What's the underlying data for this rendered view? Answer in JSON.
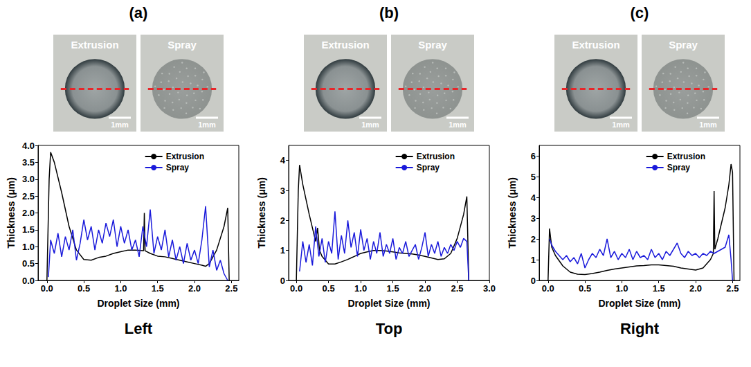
{
  "chart_data": [
    {
      "type": "line",
      "title": "(a)",
      "caption": "Left",
      "annotations": [
        {
          "text": "Extrusion",
          "scale_bar": "1mm"
        },
        {
          "text": "Spray",
          "scale_bar": "1mm"
        }
      ],
      "x_label": "Droplet Size (mm)",
      "y_label": "Thickness (μm)",
      "xlim": [
        -0.12,
        2.6
      ],
      "xticks": [
        {
          "value": 0,
          "label": "0.0"
        },
        0.5,
        {
          "value": 1,
          "label": "1.0"
        },
        1.5,
        {
          "value": 2,
          "label": "2.0"
        },
        2.5
      ],
      "ylim": [
        0,
        4
      ],
      "yticks": [
        {
          "value": 0,
          "label": "0.0"
        },
        0.5,
        {
          "value": 1,
          "label": "1.0"
        },
        1.5,
        {
          "value": 2,
          "label": "2.0"
        },
        2.5,
        {
          "value": 3,
          "label": "3.0"
        },
        3.5,
        {
          "value": 4,
          "label": "4.0"
        }
      ],
      "grid": false,
      "legend": "upper right",
      "series": [
        {
          "name": "Extrusion",
          "color": "#000000",
          "x": [
            0.0,
            0.03,
            0.05,
            0.1,
            0.2,
            0.3,
            0.4,
            0.5,
            0.6,
            0.7,
            0.8,
            0.9,
            1.0,
            1.1,
            1.2,
            1.3,
            1.31,
            1.32,
            1.33,
            1.4,
            1.5,
            1.6,
            1.7,
            1.8,
            1.9,
            2.0,
            2.1,
            2.15,
            2.2,
            2.3,
            2.4,
            2.45,
            2.47
          ],
          "values": [
            0,
            3.0,
            3.8,
            3.5,
            2.6,
            1.6,
            0.9,
            0.62,
            0.6,
            0.68,
            0.72,
            0.8,
            0.85,
            0.9,
            0.9,
            0.88,
            0.88,
            2.0,
            0.88,
            0.8,
            0.72,
            0.7,
            0.65,
            0.6,
            0.55,
            0.5,
            0.45,
            0.42,
            0.5,
            0.9,
            1.6,
            2.15,
            0
          ]
        },
        {
          "name": "Spray",
          "color": "#1a1adb",
          "x": [
            0.02,
            0.05,
            0.1,
            0.15,
            0.2,
            0.25,
            0.3,
            0.35,
            0.4,
            0.45,
            0.5,
            0.55,
            0.6,
            0.65,
            0.7,
            0.75,
            0.8,
            0.85,
            0.9,
            0.95,
            1.0,
            1.05,
            1.1,
            1.15,
            1.2,
            1.25,
            1.3,
            1.35,
            1.4,
            1.45,
            1.5,
            1.55,
            1.6,
            1.65,
            1.7,
            1.75,
            1.8,
            1.85,
            1.9,
            1.95,
            2.0,
            2.05,
            2.1,
            2.15,
            2.2,
            2.25,
            2.3,
            2.35,
            2.4,
            2.45
          ],
          "values": [
            0.1,
            1.2,
            0.8,
            1.4,
            0.7,
            1.3,
            0.9,
            1.5,
            0.6,
            1.1,
            1.8,
            1.2,
            1.6,
            0.9,
            1.5,
            1.1,
            1.7,
            1.3,
            1.8,
            1.0,
            1.6,
            1.1,
            1.5,
            0.9,
            1.2,
            0.7,
            1.6,
            1.0,
            2.1,
            0.8,
            1.3,
            0.9,
            1.5,
            0.7,
            1.2,
            0.6,
            1.0,
            0.5,
            1.1,
            0.6,
            0.9,
            0.5,
            1.2,
            2.2,
            0.4,
            0.9,
            0.3,
            0.6,
            0.2,
            0.0
          ]
        }
      ]
    },
    {
      "type": "line",
      "title": "(b)",
      "caption": "Top",
      "annotations": [
        {
          "text": "Extrusion",
          "scale_bar": "1mm"
        },
        {
          "text": "Spray",
          "scale_bar": "1mm"
        }
      ],
      "x_label": "Droplet Size (mm)",
      "y_label": "Thickness (μm)",
      "xlim": [
        -0.12,
        3.0
      ],
      "xticks": [
        {
          "value": 0,
          "label": "0.0"
        },
        0.5,
        {
          "value": 1,
          "label": "1.0"
        },
        1.5,
        {
          "value": 2,
          "label": "2.0"
        },
        2.5,
        {
          "value": 3,
          "label": "3.0"
        }
      ],
      "ylim": [
        0,
        4.5
      ],
      "yticks": [
        0,
        1,
        2,
        3,
        4
      ],
      "grid": false,
      "legend": "upper right",
      "series": [
        {
          "name": "Extrusion",
          "color": "#000000",
          "x": [
            0.0,
            0.03,
            0.05,
            0.1,
            0.2,
            0.3,
            0.33,
            0.36,
            0.4,
            0.5,
            0.6,
            0.7,
            0.8,
            0.9,
            1.0,
            1.1,
            1.2,
            1.3,
            1.4,
            1.5,
            1.6,
            1.7,
            1.8,
            1.9,
            2.0,
            2.1,
            2.2,
            2.3,
            2.4,
            2.5,
            2.6,
            2.65,
            2.68
          ],
          "values": [
            0,
            3.0,
            3.85,
            3.2,
            2.2,
            1.3,
            1.75,
            1.0,
            0.8,
            0.55,
            0.55,
            0.62,
            0.7,
            0.8,
            0.9,
            0.95,
            1.0,
            1.0,
            0.98,
            0.95,
            0.92,
            0.9,
            0.88,
            0.85,
            0.8,
            0.75,
            0.7,
            0.72,
            0.9,
            1.4,
            2.2,
            2.8,
            0
          ]
        },
        {
          "name": "Spray",
          "color": "#1a1adb",
          "x": [
            0.05,
            0.1,
            0.15,
            0.2,
            0.25,
            0.3,
            0.35,
            0.4,
            0.45,
            0.5,
            0.55,
            0.6,
            0.65,
            0.7,
            0.75,
            0.8,
            0.85,
            0.9,
            0.95,
            1.0,
            1.05,
            1.1,
            1.15,
            1.2,
            1.25,
            1.3,
            1.35,
            1.4,
            1.45,
            1.5,
            1.55,
            1.6,
            1.65,
            1.7,
            1.75,
            1.8,
            1.85,
            1.9,
            1.95,
            2.0,
            2.05,
            2.1,
            2.15,
            2.2,
            2.25,
            2.3,
            2.35,
            2.4,
            2.45,
            2.5,
            2.55,
            2.6,
            2.65,
            2.68
          ],
          "values": [
            0.3,
            1.3,
            0.6,
            1.2,
            0.5,
            1.8,
            0.8,
            1.4,
            0.6,
            1.3,
            0.9,
            2.3,
            0.7,
            1.5,
            0.9,
            2.0,
            1.1,
            1.6,
            0.8,
            1.7,
            1.0,
            1.4,
            0.7,
            1.3,
            0.9,
            1.6,
            0.8,
            1.2,
            0.9,
            1.4,
            0.7,
            1.1,
            0.9,
            1.3,
            0.8,
            1.0,
            1.2,
            0.7,
            1.1,
            1.6,
            0.8,
            1.2,
            0.9,
            1.3,
            0.8,
            1.1,
            0.9,
            1.2,
            1.0,
            1.3,
            1.1,
            1.4,
            1.3,
            0.0
          ]
        }
      ]
    },
    {
      "type": "line",
      "title": "(c)",
      "caption": "Right",
      "annotations": [
        {
          "text": "Extrusion",
          "scale_bar": "1mm"
        },
        {
          "text": "Spray",
          "scale_bar": "1mm"
        }
      ],
      "x_label": "Droplet Size (mm)",
      "y_label": "Thickness (μm)",
      "xlim": [
        -0.12,
        2.6
      ],
      "xticks": [
        {
          "value": 0,
          "label": "0.0"
        },
        0.5,
        {
          "value": 1,
          "label": "1.0"
        },
        1.5,
        {
          "value": 2,
          "label": "2.0"
        },
        2.5
      ],
      "ylim": [
        0,
        6.5
      ],
      "yticks": [
        0,
        1,
        2,
        3,
        4,
        5,
        6
      ],
      "grid": false,
      "legend": "upper right",
      "series": [
        {
          "name": "Extrusion",
          "color": "#000000",
          "x": [
            0.0,
            0.02,
            0.05,
            0.1,
            0.2,
            0.3,
            0.4,
            0.5,
            0.6,
            0.7,
            0.8,
            0.9,
            1.0,
            1.1,
            1.2,
            1.3,
            1.4,
            1.5,
            1.6,
            1.7,
            1.8,
            1.9,
            2.0,
            2.1,
            2.2,
            2.24,
            2.25,
            2.26,
            2.3,
            2.4,
            2.45,
            2.48,
            2.5,
            2.52
          ],
          "values": [
            0,
            2.5,
            1.6,
            1.2,
            0.7,
            0.4,
            0.3,
            0.28,
            0.33,
            0.4,
            0.48,
            0.55,
            0.6,
            0.65,
            0.7,
            0.72,
            0.75,
            0.75,
            0.72,
            0.68,
            0.6,
            0.55,
            0.5,
            0.6,
            1.0,
            1.3,
            4.3,
            1.5,
            2.0,
            3.5,
            4.6,
            5.6,
            5.2,
            0
          ]
        },
        {
          "name": "Spray",
          "color": "#1a1adb",
          "x": [
            0.02,
            0.05,
            0.1,
            0.15,
            0.2,
            0.25,
            0.3,
            0.35,
            0.4,
            0.45,
            0.5,
            0.55,
            0.6,
            0.65,
            0.7,
            0.75,
            0.8,
            0.85,
            0.9,
            0.95,
            1.0,
            1.05,
            1.1,
            1.15,
            1.2,
            1.25,
            1.3,
            1.35,
            1.4,
            1.45,
            1.5,
            1.55,
            1.6,
            1.65,
            1.7,
            1.75,
            1.8,
            1.85,
            1.9,
            1.95,
            2.0,
            2.05,
            2.1,
            2.15,
            2.2,
            2.25,
            2.3,
            2.35,
            2.4,
            2.45,
            2.48,
            2.5
          ],
          "values": [
            2.0,
            1.7,
            1.4,
            1.2,
            1.0,
            1.2,
            0.9,
            1.1,
            0.8,
            1.3,
            0.6,
            1.0,
            1.3,
            1.1,
            1.5,
            1.2,
            2.0,
            1.1,
            1.4,
            1.0,
            1.3,
            1.1,
            1.5,
            1.0,
            1.4,
            1.1,
            1.2,
            1.0,
            1.5,
            1.1,
            1.3,
            1.0,
            1.4,
            1.2,
            1.5,
            1.8,
            1.3,
            1.1,
            1.4,
            1.2,
            1.3,
            1.1,
            1.3,
            1.2,
            1.4,
            1.3,
            1.4,
            1.5,
            1.6,
            2.2,
            1.0,
            0.0
          ]
        }
      ]
    }
  ]
}
